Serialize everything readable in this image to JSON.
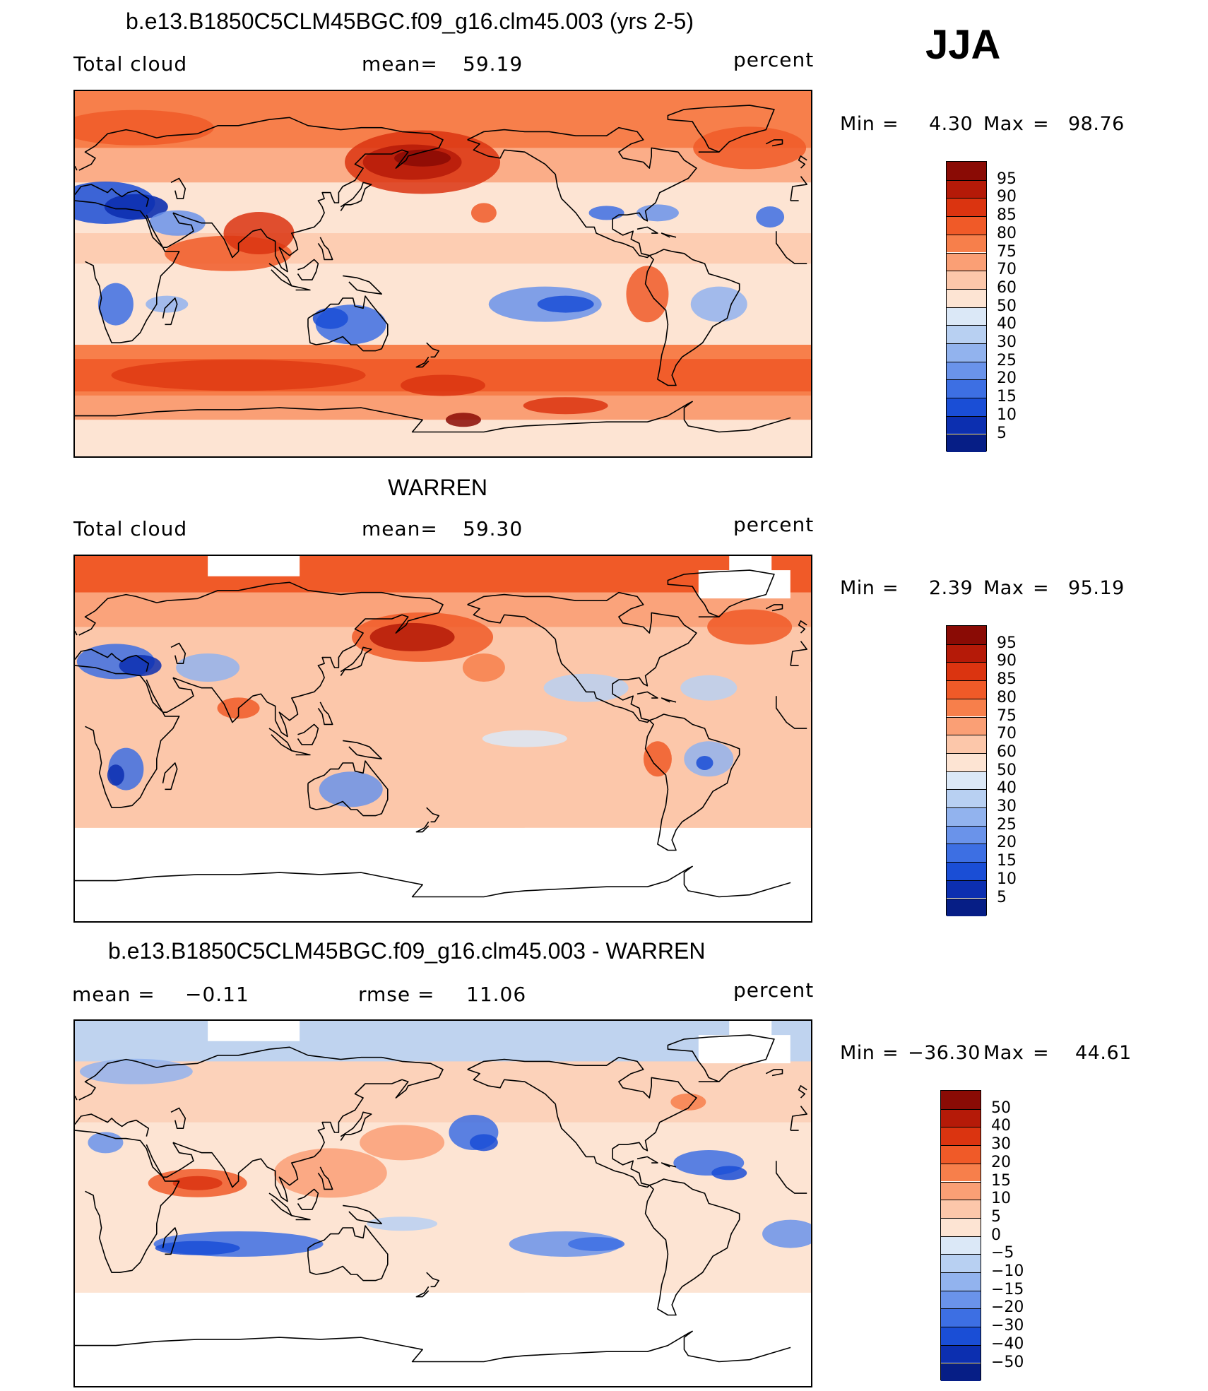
{
  "season": "JJA",
  "panels": [
    {
      "id": "model",
      "title": "b.e13.B1850C5CLM45BGC.f09_g16.clm45.003 (yrs 2-5)",
      "left_label": "Total cloud",
      "stat_label": "mean=",
      "stat_value": "59.19",
      "extra_label": "",
      "extra_value": "",
      "units": "percent",
      "min_label": "Min",
      "min_value": "4.30",
      "max_label": "Max",
      "max_value": "98.76",
      "colorbar": {
        "levels": [
          "95",
          "90",
          "85",
          "80",
          "75",
          "70",
          "60",
          "50",
          "40",
          "30",
          "25",
          "20",
          "15",
          "10",
          "5"
        ],
        "colors": [
          "#8a0b05",
          "#b51a08",
          "#db3410",
          "#f05a28",
          "#f77f4b",
          "#fa9f75",
          "#fcc7aa",
          "#fde4d3",
          "#dbe8f7",
          "#b8d0f2",
          "#92b3ee",
          "#6a93ea",
          "#3d6fe3",
          "#1a4ed6",
          "#0c2fb0",
          "#061e86"
        ]
      },
      "masked": false
    },
    {
      "id": "obs",
      "title": "WARREN",
      "left_label": "Total cloud",
      "stat_label": "mean=",
      "stat_value": "59.30",
      "extra_label": "",
      "extra_value": "",
      "units": "percent",
      "min_label": "Min",
      "min_value": "2.39",
      "max_label": "Max",
      "max_value": "95.19",
      "colorbar": {
        "levels": [
          "95",
          "90",
          "85",
          "80",
          "75",
          "70",
          "60",
          "50",
          "40",
          "30",
          "25",
          "20",
          "15",
          "10",
          "5"
        ],
        "colors": [
          "#8a0b05",
          "#b51a08",
          "#db3410",
          "#f05a28",
          "#f77f4b",
          "#fa9f75",
          "#fcc7aa",
          "#fde4d3",
          "#dbe8f7",
          "#b8d0f2",
          "#92b3ee",
          "#6a93ea",
          "#3d6fe3",
          "#1a4ed6",
          "#0c2fb0",
          "#061e86"
        ]
      },
      "masked": true
    },
    {
      "id": "diff",
      "title": "b.e13.B1850C5CLM45BGC.f09_g16.clm45.003 - WARREN",
      "left_label": "mean =",
      "stat_label": "",
      "stat_value": "−0.11",
      "extra_label": "rmse =",
      "extra_value": "11.06",
      "units": "percent",
      "min_label": "Min",
      "min_value": "−36.30",
      "max_label": "Max",
      "max_value": "44.61",
      "colorbar": {
        "levels": [
          "50",
          "40",
          "30",
          "20",
          "15",
          "10",
          "5",
          "0",
          "−5",
          "−10",
          "−15",
          "−20",
          "−30",
          "−40",
          "−50"
        ],
        "colors": [
          "#8a0b05",
          "#b51a08",
          "#db3410",
          "#f05a28",
          "#f77f4b",
          "#fa9f75",
          "#fcc7aa",
          "#fde4d3",
          "#dbe8f7",
          "#b8d0f2",
          "#92b3ee",
          "#6a93ea",
          "#3d6fe3",
          "#1a4ed6",
          "#0c2fb0",
          "#061e86"
        ]
      },
      "masked": true
    }
  ]
}
